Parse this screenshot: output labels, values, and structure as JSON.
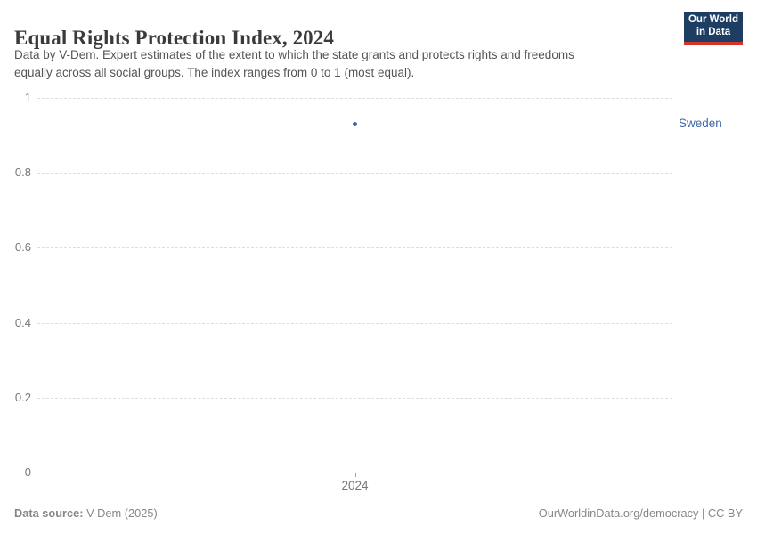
{
  "header": {
    "title": "Equal Rights Protection Index, 2024",
    "subtitle_lines": [
      "Data by V-Dem. Expert estimates of the extent to which the state grants and protects rights and freedoms",
      "equally across all social groups. The index ranges from 0 to 1 (most equal)."
    ],
    "logo": {
      "line1": "Our World",
      "line2": "in Data"
    }
  },
  "chart_data": {
    "type": "scatter",
    "x": [
      2024
    ],
    "series": [
      {
        "name": "Sweden",
        "values": [
          0.93
        ]
      }
    ],
    "title": "Equal Rights Protection Index, 2024",
    "xlabel": "",
    "ylabel": "",
    "ylim": [
      0,
      1
    ],
    "yticks": [
      0,
      0.2,
      0.4,
      0.6,
      0.8,
      1
    ],
    "ytick_labels": [
      "0",
      "0.2",
      "0.4",
      "0.6",
      "0.8",
      "1"
    ],
    "xtick_labels": [
      "2024"
    ],
    "grid": "horizontal-dashed",
    "legend_position": "right-of-point"
  },
  "footer": {
    "source_label": "Data source:",
    "source_value": " V-Dem (2025)",
    "right_text": "OurWorldinData.org/democracy | CC BY"
  },
  "colors": {
    "bg": "#ffffff",
    "title-color": "#3a3a3a",
    "subtitle-color": "#555555",
    "tick-color": "#777777",
    "grid-color": "#dddddd",
    "axis-color": "#a0a0a0",
    "point-color": "#4063a9",
    "label-color": "#3d67a9",
    "footer-color": "#878787",
    "logo-navy": "#1d3d63",
    "logo-red": "#d2352c"
  }
}
